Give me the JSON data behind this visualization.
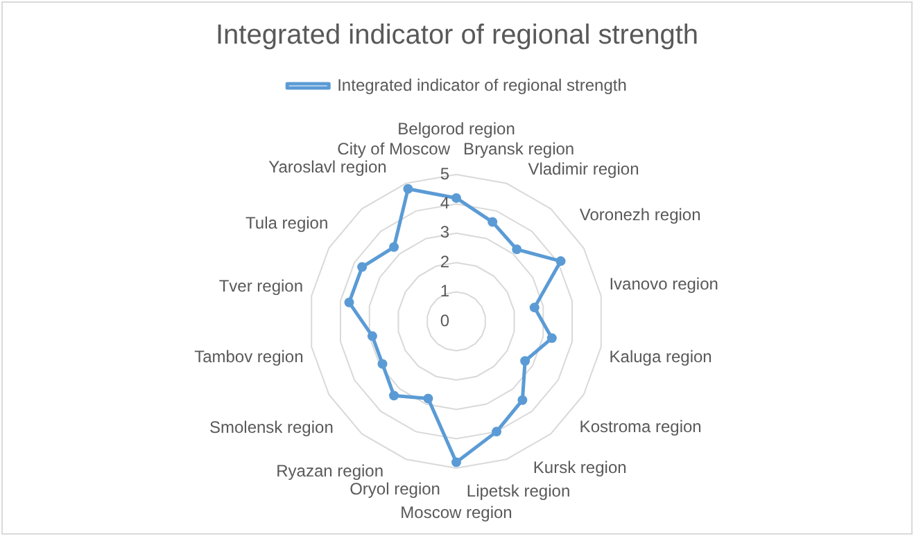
{
  "chart_data": {
    "type": "radar",
    "title": "Integrated indicator of regional strength",
    "categories": [
      "Belgorod region",
      "Bryansk region",
      "Vladimir region",
      "Voronezh region",
      "Ivanovo region",
      "Kaluga region",
      "Kostroma region",
      "Kursk region",
      "Lipetsk region",
      "Moscow region",
      "Oryol region",
      "Ryazan region",
      "Smolensk region",
      "Tambov region",
      "Tver region",
      "Tula region",
      "Yaroslavl region",
      "City of Moscow"
    ],
    "series": [
      {
        "name": "Integrated indicator of regional strength",
        "color": "#5b9bd5",
        "values": [
          4.2,
          3.6,
          3.2,
          4.1,
          2.7,
          3.3,
          2.7,
          3.5,
          4.0,
          4.8,
          2.8,
          3.3,
          2.9,
          2.9,
          3.7,
          3.7,
          3.3,
          4.8
        ]
      }
    ],
    "ylim": [
      0,
      5
    ],
    "yticks": [
      0,
      1,
      2,
      3,
      4,
      5
    ],
    "grid": true,
    "legend": "top",
    "marker": "circle",
    "line_style": "solid"
  }
}
